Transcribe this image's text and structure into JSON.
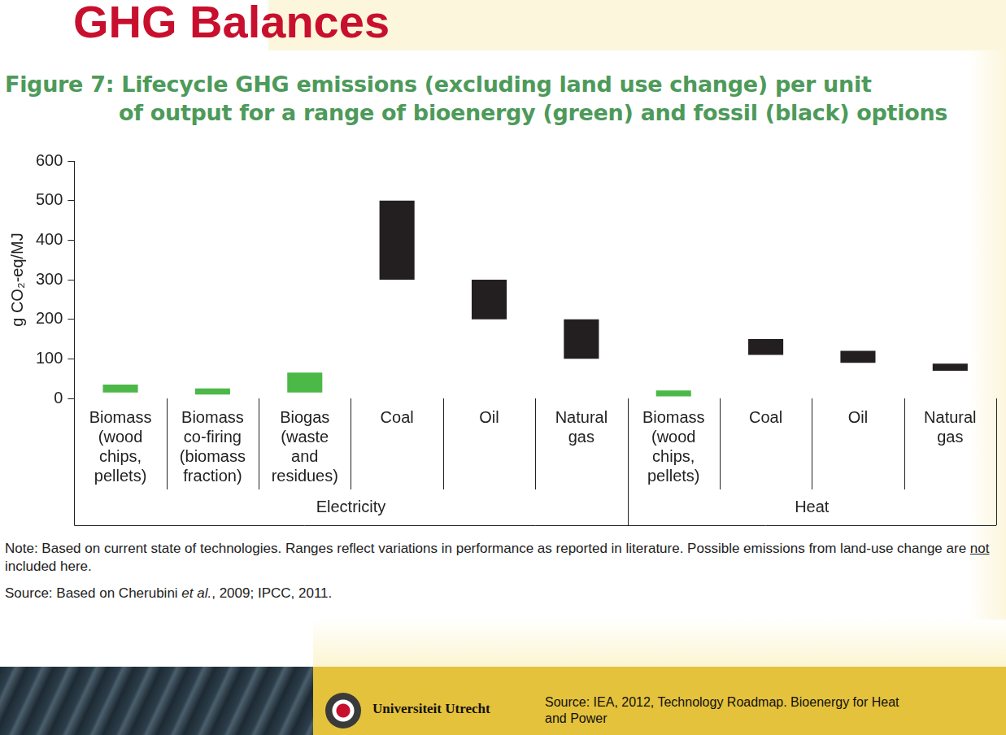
{
  "header": "GHG Balances",
  "chart_data": {
    "type": "bar",
    "title": [
      "Figure 7: Lifecycle GHG emissions (excluding land use change) per unit",
      "of output for a range of bioenergy (green) and fossil (black) options"
    ],
    "y_label": "g CO₂-eq/MJ",
    "categories": [
      [
        "Biomass",
        "(wood",
        "chips,",
        "pellets)"
      ],
      [
        "Biomass",
        "co-firing",
        "(biomass",
        "fraction)"
      ],
      [
        "Biogas",
        "(waste",
        "and",
        "residues)"
      ],
      [
        "Coal"
      ],
      [
        "Oil"
      ],
      [
        "Natural",
        "gas"
      ],
      [
        "Biomass",
        "(wood",
        "chips,",
        "pellets)"
      ],
      [
        "Coal"
      ],
      [
        "Oil"
      ],
      [
        "Natural",
        "gas"
      ]
    ],
    "groups": [
      "Electricity",
      "Electricity",
      "Electricity",
      "Electricity",
      "Electricity",
      "Electricity",
      "Heat",
      "Heat",
      "Heat",
      "Heat"
    ],
    "values": [
      [
        15,
        35
      ],
      [
        10,
        25
      ],
      [
        15,
        65
      ],
      [
        300,
        500
      ],
      [
        200,
        300
      ],
      [
        100,
        200
      ],
      [
        5,
        20
      ],
      [
        110,
        150
      ],
      [
        90,
        120
      ],
      [
        70,
        88
      ]
    ],
    "colors": [
      "#4cb848",
      "#4cb848",
      "#4cb848",
      "#231f20",
      "#231f20",
      "#231f20",
      "#4cb848",
      "#231f20",
      "#231f20",
      "#231f20"
    ],
    "ylim": [
      0,
      600
    ],
    "yticks": [
      0,
      100,
      200,
      300,
      400,
      500,
      600
    ],
    "grid": false
  },
  "note": {
    "before": "Note: Based on current state of technologies. Ranges reflect variations in performance as reported in literature. Possible emissions from land-use change are ",
    "underlined": "not",
    "after": " included here."
  },
  "source": {
    "before": "Source: Based on Cherubini ",
    "italic": "et al.",
    "after": ", 2009; IPCC, 2011."
  },
  "footer": {
    "institution": "Universiteit Utrecht",
    "source": [
      "Source: IEA, 2012, Technology Roadmap. Bioenergy for Heat",
      "and Power"
    ]
  }
}
